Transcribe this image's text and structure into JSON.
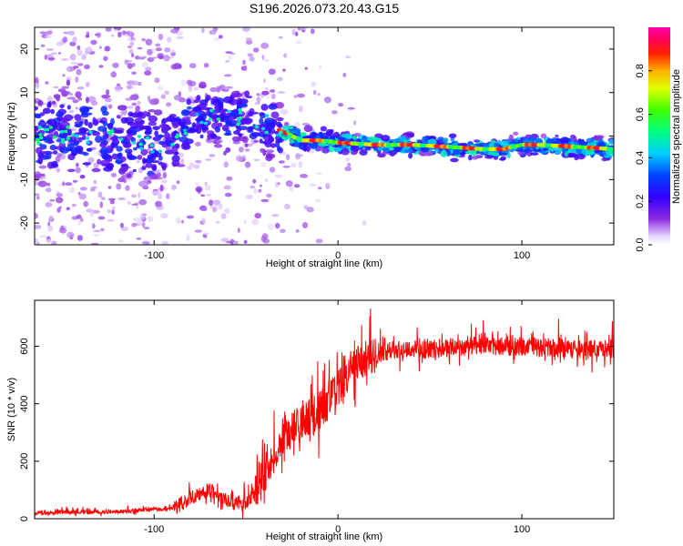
{
  "title": "S196.2026.073.20.43.G15",
  "chart_data": [
    {
      "type": "heatmap",
      "name": "spectrogram",
      "xlabel": "Height of straight line (km)",
      "ylabel": "Frequency (Hz)",
      "xlim": [
        -165,
        150
      ],
      "ylim": [
        -25,
        25
      ],
      "xticks": [
        -100,
        0,
        100
      ],
      "yticks": [
        -20,
        -10,
        0,
        10,
        20
      ],
      "colorbar": {
        "label": "Normalized spectral amplitude",
        "range": [
          0,
          1
        ],
        "ticks": [
          "0.0",
          "0.2",
          "0.4",
          "0.6",
          "0.8"
        ],
        "tick_values": [
          0.0,
          0.2,
          0.4,
          0.6,
          0.8
        ]
      },
      "ridge": {
        "x": [
          -165,
          -140,
          -120,
          -100,
          -90,
          -80,
          -70,
          -60,
          -50,
          -40,
          -30,
          -20,
          -10,
          0,
          20,
          40,
          60,
          80,
          90,
          100,
          110,
          130,
          150
        ],
        "freq": [
          0,
          0.5,
          -1,
          -2,
          -1,
          3,
          5,
          4,
          5,
          3,
          1,
          -1,
          -1,
          -1.5,
          -2,
          -2,
          -2.5,
          -3,
          -3,
          -2,
          -2,
          -2.5,
          -3
        ]
      }
    },
    {
      "type": "line",
      "name": "snr",
      "xlabel": "Height of straight line (km)",
      "ylabel": "SNR (10 * v/v)",
      "xlim": [
        -165,
        150
      ],
      "ylim": [
        0,
        760
      ],
      "xticks": [
        -100,
        0,
        100
      ],
      "yticks": [
        0,
        200,
        400,
        600
      ],
      "color": "#ff0000",
      "trend": {
        "x": [
          -165,
          -120,
          -90,
          -80,
          -70,
          -60,
          -50,
          -40,
          -30,
          -20,
          -10,
          0,
          10,
          20,
          30,
          50,
          70,
          100,
          130,
          150
        ],
        "y": [
          20,
          25,
          35,
          70,
          100,
          60,
          50,
          150,
          290,
          330,
          380,
          450,
          540,
          570,
          590,
          590,
          600,
          600,
          590,
          590
        ]
      }
    }
  ]
}
